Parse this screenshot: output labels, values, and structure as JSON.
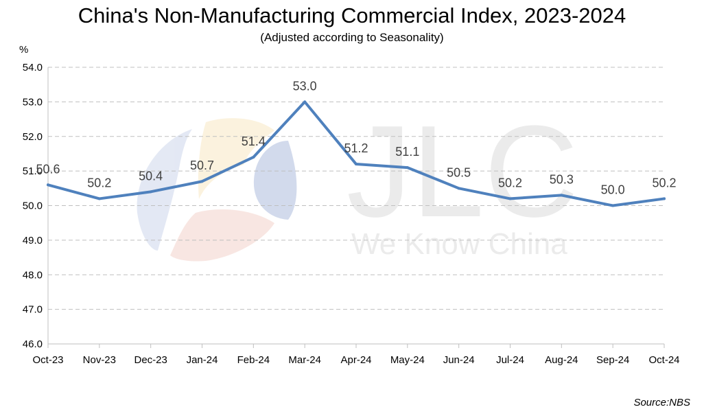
{
  "watermark": {
    "logo_text": "JLC",
    "tagline": "We Know China"
  },
  "source": "Source:NBS",
  "chart_data": {
    "type": "line",
    "title": "China's Non-Manufacturing Commercial Index, 2023-2024",
    "subtitle": "(Adjusted according to Seasonality)",
    "ylabel": "%",
    "xlabel": "",
    "categories": [
      "Oct-23",
      "Nov-23",
      "Dec-23",
      "Jan-24",
      "Feb-24",
      "Mar-24",
      "Apr-24",
      "May-24",
      "Jun-24",
      "Jul-24",
      "Aug-24",
      "Sep-24",
      "Oct-24"
    ],
    "series": [
      {
        "values": [
          50.6,
          50.2,
          50.4,
          50.7,
          51.4,
          53.0,
          51.2,
          51.1,
          50.5,
          50.2,
          50.3,
          50.0,
          50.2
        ],
        "color": "#4f81bd"
      }
    ],
    "ylim": [
      46.0,
      54.0
    ],
    "yticks": [
      "46.0",
      "47.0",
      "48.0",
      "49.0",
      "50.0",
      "51.0",
      "52.0",
      "53.0",
      "54.0"
    ],
    "data_labels": [
      "50.6",
      "50.2",
      "50.4",
      "50.7",
      "51.4",
      "53.0",
      "51.2",
      "51.1",
      "50.5",
      "50.2",
      "50.3",
      "50.0",
      "50.2"
    ],
    "grid": true,
    "legend": "none"
  }
}
